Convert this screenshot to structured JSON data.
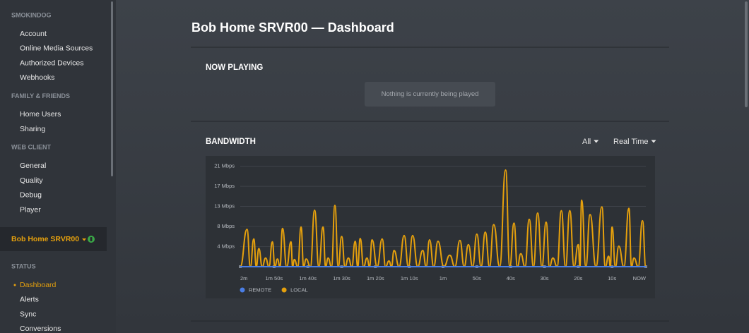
{
  "sidebar": {
    "sections": [
      {
        "heading": "SMOKINDOG",
        "items": [
          "Account",
          "Online Media Sources",
          "Authorized Devices",
          "Webhooks"
        ]
      },
      {
        "heading": "FAMILY & FRIENDS",
        "items": [
          "Home Users",
          "Sharing"
        ]
      },
      {
        "heading": "WEB CLIENT",
        "items": [
          "General",
          "Quality",
          "Debug",
          "Player"
        ]
      }
    ],
    "server": "Bob Home SRVR00",
    "status": {
      "heading": "STATUS",
      "items": [
        "Dashboard",
        "Alerts",
        "Sync",
        "Conversions"
      ]
    }
  },
  "header": {
    "title": "Bob Home SRVR00 — Dashboard"
  },
  "now_playing": {
    "title": "NOW PLAYING",
    "message": "Nothing is currently being played"
  },
  "bandwidth": {
    "title": "BANDWIDTH",
    "filters": [
      "All",
      "Real Time"
    ]
  },
  "chart_data": {
    "type": "line",
    "xlim": [
      -120,
      0
    ],
    "xticks": [
      {
        "value": -120,
        "label": "2m"
      },
      {
        "value": -110,
        "label": "1m 50s"
      },
      {
        "value": -100,
        "label": "1m 40s"
      },
      {
        "value": -90,
        "label": "1m 30s"
      },
      {
        "value": -80,
        "label": "1m 20s"
      },
      {
        "value": -70,
        "label": "1m 10s"
      },
      {
        "value": -60,
        "label": "1m"
      },
      {
        "value": -50,
        "label": "50s"
      },
      {
        "value": -40,
        "label": "40s"
      },
      {
        "value": -30,
        "label": "30s"
      },
      {
        "value": -20,
        "label": "20s"
      },
      {
        "value": -10,
        "label": "10s"
      },
      {
        "value": 0,
        "label": "NOW"
      }
    ],
    "ylim": [
      0,
      23
    ],
    "yticks": [
      {
        "value": 4.2,
        "label": "4 Mbps"
      },
      {
        "value": 8.4,
        "label": "8 Mbps"
      },
      {
        "value": 12.6,
        "label": "13 Mbps"
      },
      {
        "value": 16.8,
        "label": "17 Mbps"
      },
      {
        "value": 21,
        "label": "21 Mbps"
      }
    ],
    "grid": true,
    "series": [
      {
        "name": "REMOTE",
        "color": "#4a7ee6",
        "x": [
          -120,
          0
        ],
        "values": [
          0,
          0
        ]
      },
      {
        "name": "LOCAL",
        "color": "#e5a00d",
        "x": [
          -120,
          -118,
          -117,
          -116,
          -115.25,
          -114.5,
          -113.5,
          -112.5,
          -111.5,
          -110.5,
          -109.75,
          -109,
          -108.25,
          -107.5,
          -106.25,
          -105,
          -104.5,
          -104,
          -103,
          -102,
          -101.25,
          -100.5,
          -99.25,
          -98,
          -96.75,
          -95.5,
          -94.75,
          -94,
          -93,
          -92,
          -91,
          -90,
          -89,
          -88,
          -87,
          -86,
          -85.25,
          -84.5,
          -83.5,
          -82.5,
          -81.75,
          -81,
          -79.5,
          -78,
          -77,
          -76,
          -75.25,
          -74.5,
          -73,
          -71.5,
          -70.25,
          -69,
          -67.5,
          -66,
          -65,
          -64,
          -62.75,
          -61.5,
          -59.75,
          -58,
          -56.5,
          -55,
          -53.75,
          -52.5,
          -51.25,
          -50,
          -48.75,
          -47.5,
          -46.25,
          -45,
          -43.25,
          -41.5,
          -40.25,
          -39,
          -38,
          -37,
          -35.75,
          -34.5,
          -33.25,
          -32,
          -30.75,
          -29.5,
          -28.5,
          -27.5,
          -26.25,
          -25,
          -23.75,
          -22.5,
          -21.25,
          -20,
          -19.5,
          -19,
          -17.75,
          -16.5,
          -14.75,
          -13,
          -12,
          -11,
          -10.5,
          -10,
          -9,
          -8,
          -6.5,
          -5,
          -4.25,
          -3.5,
          -2.25,
          -1,
          0
        ],
        "values": [
          0,
          7.8,
          0,
          5.8,
          0,
          3.8,
          0,
          1.8,
          0,
          5.2,
          0,
          1.6,
          0,
          8.0,
          0,
          5.2,
          0,
          1.5,
          0,
          8.3,
          0,
          1.6,
          0,
          11.8,
          0,
          8.3,
          0,
          1.8,
          0,
          12.8,
          0,
          6.3,
          0,
          1.8,
          0,
          5.3,
          0,
          5.9,
          0,
          1.8,
          0,
          5.6,
          0,
          5.8,
          0,
          1.2,
          0,
          3.4,
          0,
          6.5,
          0,
          6.5,
          0,
          3.4,
          0,
          5.6,
          0,
          5.3,
          0,
          2.4,
          0,
          5.5,
          0,
          4.6,
          0,
          6.8,
          0,
          7.2,
          0,
          8.8,
          0,
          20.2,
          0,
          9.1,
          0,
          2.7,
          0,
          9.9,
          0,
          11.2,
          0,
          9.3,
          0,
          1.8,
          0,
          11.7,
          0,
          11.7,
          0,
          4.6,
          0,
          13.9,
          0,
          10.9,
          0,
          12.5,
          0,
          2.2,
          0,
          8.3,
          0,
          4.3,
          0,
          12.2,
          0,
          1.8,
          0,
          9.6,
          0
        ]
      }
    ]
  }
}
